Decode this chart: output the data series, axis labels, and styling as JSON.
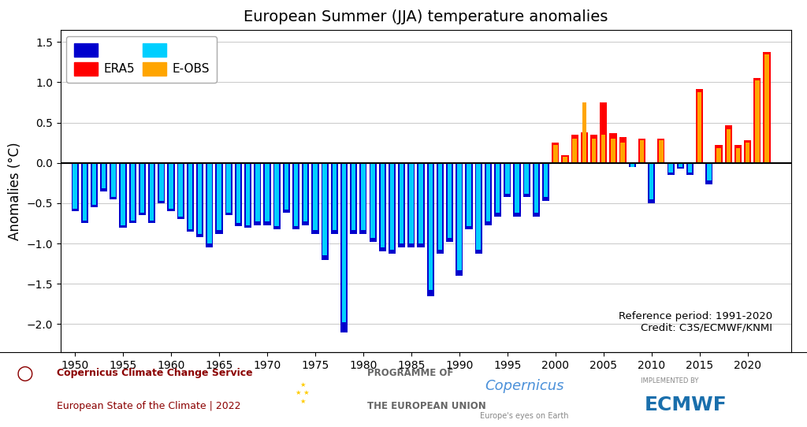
{
  "title": "European Summer (JJA) temperature anomalies",
  "ylabel": "Anomalies (°C)",
  "ylim": [
    -2.35,
    1.65
  ],
  "xlim": [
    1948.5,
    2024.5
  ],
  "reference_text": "Reference period: 1991-2020\nCredit: C3S/ECMWF/KNMI",
  "era5_color_neg": "#0000CD",
  "era5_color_pos": "#FF0000",
  "eobs_color_neg": "#00CFFF",
  "eobs_color_pos": "#FFA500",
  "background_color": "#ffffff",
  "years": [
    1950,
    1951,
    1952,
    1953,
    1954,
    1955,
    1956,
    1957,
    1958,
    1959,
    1960,
    1961,
    1962,
    1963,
    1964,
    1965,
    1966,
    1967,
    1968,
    1969,
    1970,
    1971,
    1972,
    1973,
    1974,
    1975,
    1976,
    1977,
    1978,
    1979,
    1980,
    1981,
    1982,
    1983,
    1984,
    1985,
    1986,
    1987,
    1988,
    1989,
    1990,
    1991,
    1992,
    1993,
    1994,
    1995,
    1996,
    1997,
    1998,
    1999,
    2000,
    2001,
    2002,
    2003,
    2004,
    2005,
    2006,
    2007,
    2008,
    2009,
    2010,
    2011,
    2012,
    2013,
    2014,
    2015,
    2016,
    2017,
    2018,
    2019,
    2020,
    2021,
    2022
  ],
  "era5": [
    -0.6,
    -0.75,
    -0.55,
    -0.35,
    -0.45,
    -0.8,
    -0.75,
    -0.65,
    -0.75,
    -0.5,
    -0.6,
    -0.7,
    -0.85,
    -0.92,
    -1.05,
    -0.88,
    -0.65,
    -0.78,
    -0.8,
    -0.77,
    -0.77,
    -0.82,
    -0.62,
    -0.82,
    -0.77,
    -0.88,
    -1.2,
    -0.88,
    -2.1,
    -0.88,
    -0.88,
    -0.98,
    -1.1,
    -1.13,
    -1.05,
    -1.05,
    -1.05,
    -1.65,
    -1.13,
    -0.98,
    -1.4,
    -0.82,
    -1.13,
    -0.77,
    -0.67,
    -0.42,
    -0.67,
    -0.42,
    -0.67,
    -0.47,
    0.25,
    0.1,
    0.35,
    0.38,
    0.35,
    0.75,
    0.37,
    0.32,
    -0.05,
    0.3,
    -0.5,
    0.3,
    -0.15,
    -0.07,
    -0.15,
    0.92,
    -0.27,
    0.22,
    0.47,
    0.22,
    0.28,
    1.05,
    1.38
  ],
  "eobs": [
    -0.57,
    -0.72,
    -0.52,
    -0.32,
    -0.42,
    -0.77,
    -0.72,
    -0.62,
    -0.72,
    -0.47,
    -0.57,
    -0.67,
    -0.82,
    -0.88,
    -1.0,
    -0.83,
    -0.62,
    -0.75,
    -0.77,
    -0.73,
    -0.73,
    -0.78,
    -0.58,
    -0.78,
    -0.73,
    -0.83,
    -1.15,
    -0.83,
    -1.98,
    -0.83,
    -0.83,
    -0.93,
    -1.05,
    -1.08,
    -1.0,
    -1.0,
    -1.0,
    -1.58,
    -1.08,
    -0.93,
    -1.33,
    -0.78,
    -1.08,
    -0.73,
    -0.62,
    -0.38,
    -0.62,
    -0.38,
    -0.62,
    -0.42,
    0.22,
    0.08,
    0.3,
    0.75,
    0.3,
    0.35,
    0.3,
    0.25,
    -0.05,
    0.28,
    -0.45,
    0.28,
    -0.12,
    -0.05,
    -0.12,
    0.88,
    -0.22,
    0.18,
    0.42,
    0.18,
    0.25,
    1.02,
    1.35
  ],
  "xticks": [
    1950,
    1955,
    1960,
    1965,
    1970,
    1975,
    1980,
    1985,
    1990,
    1995,
    2000,
    2005,
    2010,
    2015,
    2020
  ],
  "yticks": [
    -2.0,
    -1.5,
    -1.0,
    -0.5,
    0.0,
    0.5,
    1.0,
    1.5
  ],
  "era5_bar_width": 0.75,
  "eobs_bar_width": 0.45
}
